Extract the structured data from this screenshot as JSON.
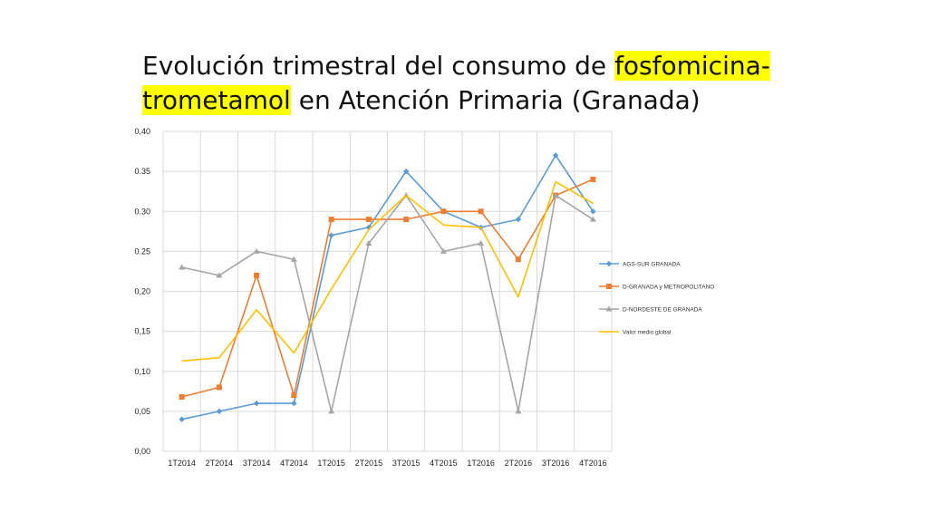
{
  "slide": {
    "title_part1": "Evolución trimestral del  consumo de ",
    "title_highlight1": "fosfomicina-",
    "title_highlight2": "trometamol",
    "title_part2": " en Atención Primaria (Granada)",
    "highlight_color": "#ffff00"
  },
  "chart_data": {
    "type": "line",
    "categories": [
      "1T2014",
      "2T2014",
      "3T2014",
      "4T2014",
      "1T2015",
      "2T2015",
      "3T2015",
      "4T2015",
      "1T2016",
      "2T2016",
      "3T2016",
      "4T2016"
    ],
    "y_ticks": [
      "0,00",
      "0,05",
      "0,10",
      "0,15",
      "0,20",
      "0.25",
      "0.30",
      "0.35",
      "0,40"
    ],
    "ylim": [
      0,
      0.4
    ],
    "grid": true,
    "legend_position": "right",
    "series": [
      {
        "name": "AGS-SUR GRANADA",
        "color": "#5b9bd5",
        "marker": "diamond",
        "values": [
          0.04,
          0.05,
          0.06,
          0.06,
          0.27,
          0.28,
          0.35,
          0.3,
          0.28,
          0.29,
          0.37,
          0.3
        ]
      },
      {
        "name": "D-GRANADA y METROPOLITANO",
        "color": "#ed7d31",
        "marker": "square",
        "values": [
          0.068,
          0.08,
          0.22,
          0.07,
          0.29,
          0.29,
          0.29,
          0.3,
          0.3,
          0.24,
          0.32,
          0.34
        ]
      },
      {
        "name": "D-NORDESTE DE GRANADA",
        "color": "#a5a5a5",
        "marker": "triangle",
        "values": [
          0.23,
          0.22,
          0.25,
          0.24,
          0.05,
          0.26,
          0.32,
          0.25,
          0.26,
          0.05,
          0.32,
          0.29
        ]
      },
      {
        "name": "Valor medio global",
        "color": "#ffc000",
        "marker": "none",
        "values": [
          0.113,
          0.117,
          0.177,
          0.123,
          0.203,
          0.277,
          0.32,
          0.283,
          0.28,
          0.193,
          0.337,
          0.31
        ]
      }
    ]
  }
}
